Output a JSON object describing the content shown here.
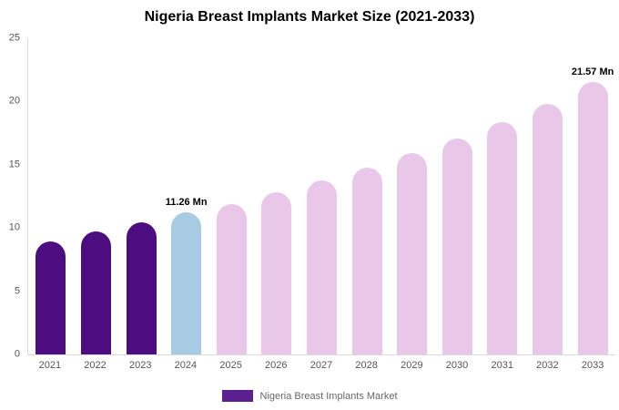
{
  "page": {
    "background": "#ffffff"
  },
  "chart_data": {
    "type": "bar",
    "title": "Nigeria Breast Implants Market Size (2021-2033)",
    "categories": [
      "2021",
      "2022",
      "2023",
      "2024",
      "2025",
      "2026",
      "2027",
      "2028",
      "2029",
      "2030",
      "2031",
      "2032",
      "2033"
    ],
    "values": [
      8.9,
      9.7,
      10.45,
      11.26,
      11.9,
      12.8,
      13.75,
      14.8,
      15.9,
      17.1,
      18.4,
      19.8,
      21.57
    ],
    "bar_colors": [
      "#4b0d80",
      "#4b0d80",
      "#4b0d80",
      "#a7cbe2",
      "#e8c7e9",
      "#e8c7e9",
      "#e8c7e9",
      "#e8c7e9",
      "#e8c7e9",
      "#e8c7e9",
      "#e8c7e9",
      "#e8c7e9",
      "#e8c7e9"
    ],
    "annotations": [
      {
        "index": 3,
        "text": "11.26 Mn"
      },
      {
        "index": 12,
        "text": "21.57 Mn"
      }
    ],
    "xlabel": "",
    "ylabel": "",
    "ylim": [
      0,
      25
    ],
    "yticks": [
      0,
      5,
      10,
      15,
      20,
      25
    ],
    "grid": false,
    "legend": {
      "label": "Nigeria Breast Implants Market",
      "swatch_color": "#5c1f90",
      "position": "bottom"
    }
  }
}
